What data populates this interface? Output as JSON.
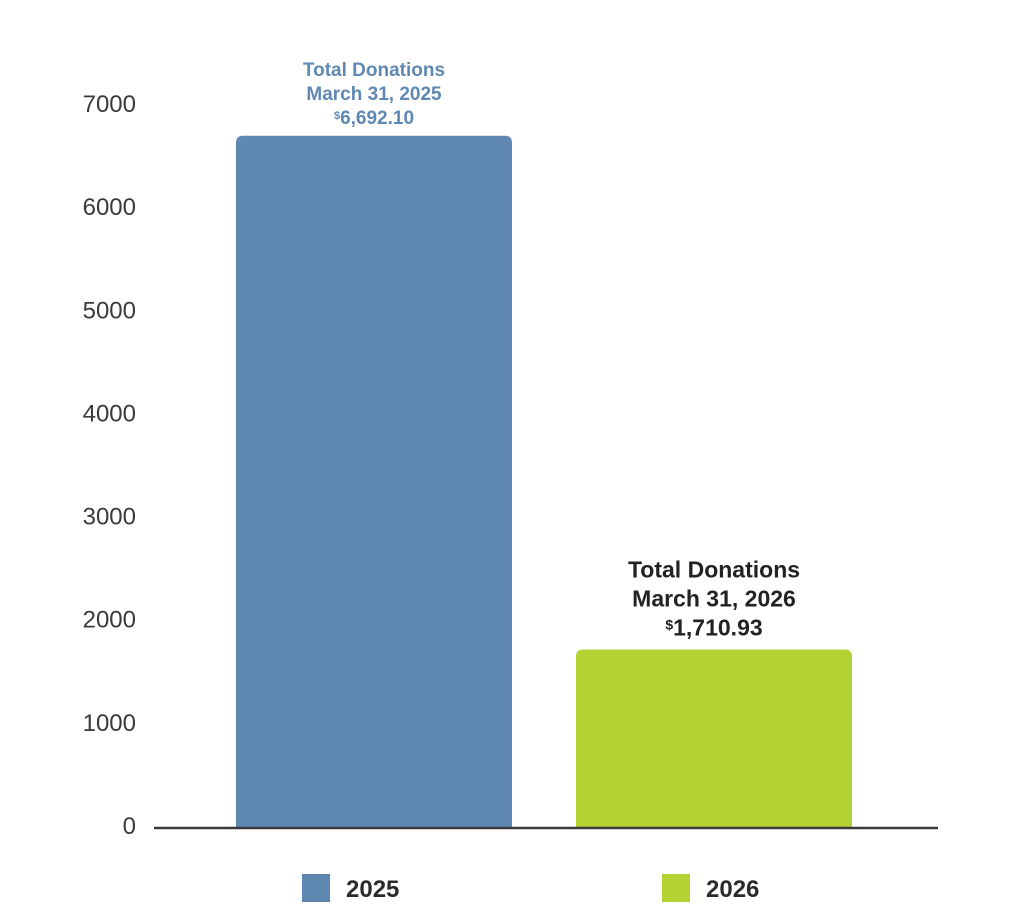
{
  "chart_data": {
    "type": "bar",
    "title": "",
    "xlabel": "",
    "ylabel": "",
    "categories": [
      "2025",
      "2026"
    ],
    "values": [
      6692.1,
      1710.93
    ],
    "ylim": [
      0,
      7000
    ],
    "yticks": [
      0,
      1000,
      2000,
      3000,
      4000,
      5000,
      6000,
      7000
    ],
    "grid": false,
    "legend": "bottom",
    "colors": [
      "#5f88b3",
      "#b3d335"
    ],
    "annotations": [
      {
        "line1": "Total Donations",
        "line2": "March 31, 2025",
        "currency_symbol": "$",
        "amount": "6,692.10",
        "color": "#5f88b3"
      },
      {
        "line1": "Total Donations",
        "line2": "March 31, 2026",
        "currency_symbol": "$",
        "amount": "1,710.93",
        "color": "#222222"
      }
    ],
    "legend_entries": [
      "2025",
      "2026"
    ]
  }
}
